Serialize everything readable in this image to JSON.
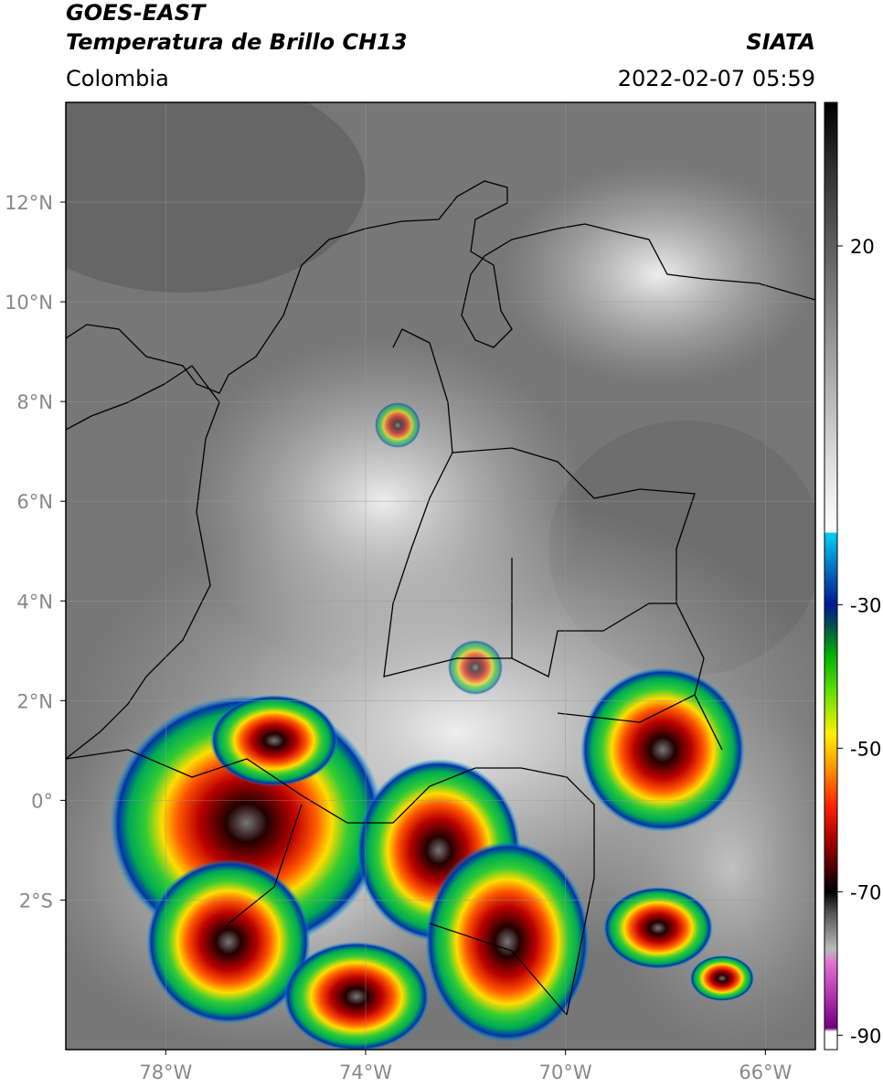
{
  "header": {
    "title": "GOES-EAST",
    "subtitle": "Temperatura de Brillo CH13",
    "source": "SIATA",
    "region": "Colombia",
    "datetime": "2022-02-07 05:59"
  },
  "map": {
    "xlim": [
      -80,
      -65
    ],
    "ylim": [
      -5,
      14
    ],
    "xticks": [
      {
        "value": -78,
        "label": "78°W"
      },
      {
        "value": -74,
        "label": "74°W"
      },
      {
        "value": -70,
        "label": "70°W"
      },
      {
        "value": -66,
        "label": "66°W"
      }
    ],
    "yticks": [
      {
        "value": 12,
        "label": "12°N"
      },
      {
        "value": 10,
        "label": "10°N"
      },
      {
        "value": 8,
        "label": "8°N"
      },
      {
        "value": 6,
        "label": "6°N"
      },
      {
        "value": 4,
        "label": "4°N"
      },
      {
        "value": 2,
        "label": "2°N"
      },
      {
        "value": 0,
        "label": "0°"
      },
      {
        "value": -2,
        "label": "2°S"
      }
    ]
  },
  "colorbar": {
    "lim": [
      -92,
      40
    ],
    "ticks": [
      20,
      -30,
      -50,
      -70,
      -90
    ]
  }
}
